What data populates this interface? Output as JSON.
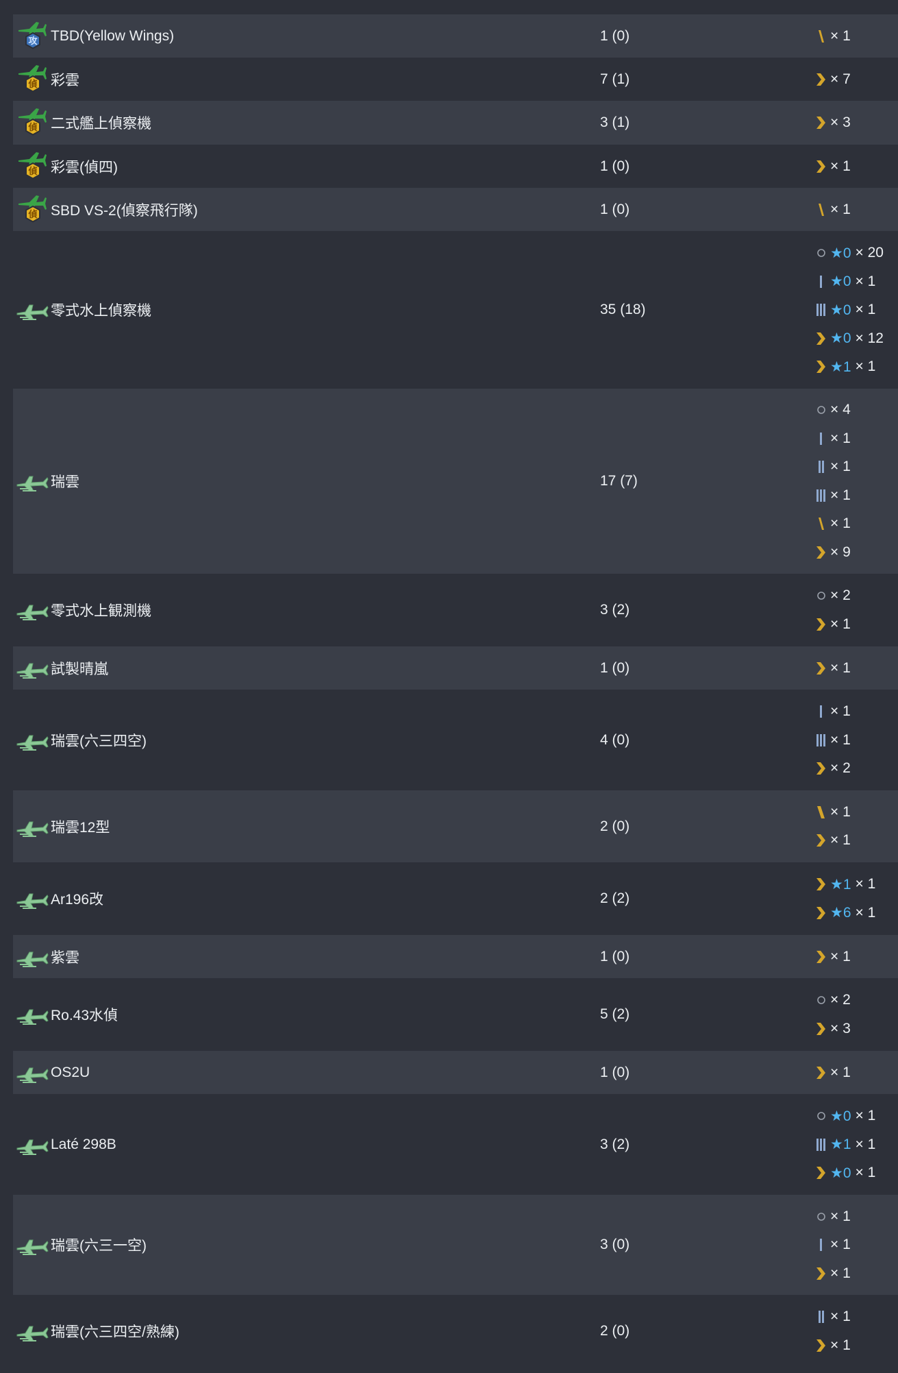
{
  "colors": {
    "background": "#2d3039",
    "row_alt": "#3a3e48",
    "text": "#eceff2",
    "star": "#52b6f0",
    "gold": "#d4a52b",
    "blue_bar": "#8fa9cf",
    "plane_green": "#8bc896"
  },
  "rows": [
    {
      "icon": "torpedo-plane-icon",
      "name": "TBD(Yellow Wings)",
      "count": "1 (0)",
      "h": 63,
      "prof": [
        {
          "icon": "rank-slash-gold-icon",
          "qty": "× 1"
        }
      ]
    },
    {
      "icon": "recon-plane-icon",
      "name": "彩雲",
      "count": "7 (1)",
      "h": 63,
      "prof": [
        {
          "icon": "rank-chevron-gold-icon",
          "qty": "× 7"
        }
      ]
    },
    {
      "icon": "recon-plane-icon",
      "name": "二式艦上偵察機",
      "count": "3 (1)",
      "h": 64,
      "prof": [
        {
          "icon": "rank-chevron-gold-icon",
          "qty": "× 3"
        }
      ]
    },
    {
      "icon": "recon-plane-icon",
      "name": "彩雲(偵四)",
      "count": "1 (0)",
      "h": 63,
      "prof": [
        {
          "icon": "rank-chevron-gold-icon",
          "qty": "× 1"
        }
      ]
    },
    {
      "icon": "recon-plane-icon",
      "name": "SBD VS-2(偵察飛行隊)",
      "count": "1 (0)",
      "h": 63,
      "prof": [
        {
          "icon": "rank-slash-gold-icon",
          "qty": "× 1"
        }
      ]
    },
    {
      "icon": "seaplane-icon",
      "name": "零式水上偵察機",
      "count": "35 (18)",
      "h": 230,
      "prof": [
        {
          "icon": "rank-none-icon",
          "star": "★0",
          "qty": "× 20"
        },
        {
          "icon": "rank-bar1-icon",
          "star": "★0",
          "qty": "× 1"
        },
        {
          "icon": "rank-bar3-icon",
          "star": "★0",
          "qty": "× 1"
        },
        {
          "icon": "rank-chevron-gold-icon",
          "star": "★0",
          "qty": "× 12"
        },
        {
          "icon": "rank-chevron-gold-icon",
          "star": "★1",
          "qty": "× 1"
        }
      ]
    },
    {
      "icon": "seaplane-icon",
      "name": "瑞雲",
      "count": "17 (7)",
      "h": 270,
      "prof": [
        {
          "icon": "rank-none-icon",
          "qty": "× 4"
        },
        {
          "icon": "rank-bar1-icon",
          "qty": "× 1"
        },
        {
          "icon": "rank-bar2-icon",
          "qty": "× 1"
        },
        {
          "icon": "rank-bar3-icon",
          "qty": "× 1"
        },
        {
          "icon": "rank-slash-gold-icon",
          "qty": "× 1"
        },
        {
          "icon": "rank-chevron-gold-icon",
          "qty": "× 9"
        }
      ]
    },
    {
      "icon": "seaplane-icon",
      "name": "零式水上観測機",
      "count": "3 (2)",
      "h": 106,
      "prof": [
        {
          "icon": "rank-none-icon",
          "qty": "× 2"
        },
        {
          "icon": "rank-chevron-gold-icon",
          "qty": "× 1"
        }
      ]
    },
    {
      "icon": "seaplane-icon",
      "name": "試製晴嵐",
      "count": "1 (0)",
      "h": 63,
      "prof": [
        {
          "icon": "rank-chevron-gold-icon",
          "qty": "× 1"
        }
      ]
    },
    {
      "icon": "seaplane-icon",
      "name": "瑞雲(六三四空)",
      "count": "4 (0)",
      "h": 147,
      "prof": [
        {
          "icon": "rank-bar1-icon",
          "qty": "× 1"
        },
        {
          "icon": "rank-bar3-icon",
          "qty": "× 1"
        },
        {
          "icon": "rank-chevron-gold-icon",
          "qty": "× 2"
        }
      ]
    },
    {
      "icon": "seaplane-icon",
      "name": "瑞雲12型",
      "count": "2 (0)",
      "h": 105,
      "prof": [
        {
          "icon": "rank-slash2-gold-icon",
          "qty": "× 1"
        },
        {
          "icon": "rank-chevron-gold-icon",
          "qty": "× 1"
        }
      ]
    },
    {
      "icon": "seaplane-icon",
      "name": "Ar196改",
      "count": "2 (2)",
      "h": 106,
      "prof": [
        {
          "icon": "rank-chevron-gold-icon",
          "star": "★1",
          "qty": "× 1"
        },
        {
          "icon": "rank-chevron-gold-icon",
          "star": "★6",
          "qty": "× 1"
        }
      ]
    },
    {
      "icon": "seaplane-icon",
      "name": "紫雲",
      "count": "1 (0)",
      "h": 63,
      "prof": [
        {
          "icon": "rank-chevron-gold-icon",
          "qty": "× 1"
        }
      ]
    },
    {
      "icon": "seaplane-icon",
      "name": "Ro.43水偵",
      "count": "5 (2)",
      "h": 106,
      "prof": [
        {
          "icon": "rank-none-icon",
          "qty": "× 2"
        },
        {
          "icon": "rank-chevron-gold-icon",
          "qty": "× 3"
        }
      ]
    },
    {
      "icon": "seaplane-icon",
      "name": "OS2U",
      "count": "1 (0)",
      "h": 63,
      "prof": [
        {
          "icon": "rank-chevron-gold-icon",
          "qty": "× 1"
        }
      ]
    },
    {
      "icon": "seaplane-icon",
      "name": "Laté 298B",
      "count": "3 (2)",
      "h": 147,
      "prof": [
        {
          "icon": "rank-none-icon",
          "star": "★0",
          "qty": "× 1"
        },
        {
          "icon": "rank-bar3-icon",
          "star": "★1",
          "qty": "× 1"
        },
        {
          "icon": "rank-chevron-gold-icon",
          "star": "★0",
          "qty": "× 1"
        }
      ]
    },
    {
      "icon": "seaplane-icon",
      "name": "瑞雲(六三一空)",
      "count": "3 (0)",
      "h": 146,
      "prof": [
        {
          "icon": "rank-none-icon",
          "qty": "× 1"
        },
        {
          "icon": "rank-bar1-icon",
          "qty": "× 1"
        },
        {
          "icon": "rank-chevron-gold-icon",
          "qty": "× 1"
        }
      ]
    },
    {
      "icon": "seaplane-icon",
      "name": "瑞雲(六三四空/熟練)",
      "count": "2 (0)",
      "h": 106,
      "prof": [
        {
          "icon": "rank-bar2-icon",
          "qty": "× 1"
        },
        {
          "icon": "rank-chevron-gold-icon",
          "qty": "× 1"
        }
      ]
    }
  ]
}
